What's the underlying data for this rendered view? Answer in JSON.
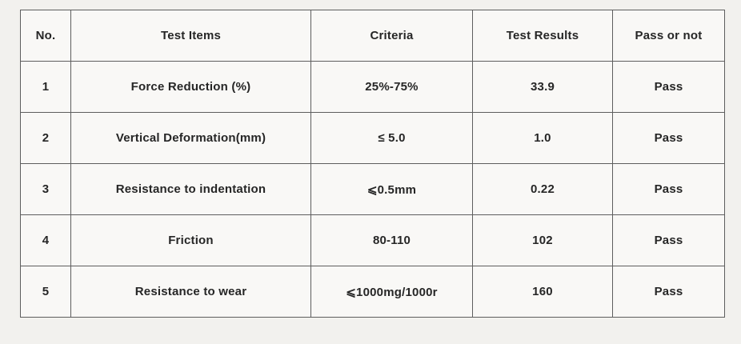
{
  "page": {
    "background_color": "#f2f1ee",
    "table_background_color": "#f9f8f6",
    "border_color": "#5e5e5e",
    "text_color": "#262626"
  },
  "table": {
    "headers": {
      "no": "No.",
      "items": "Test Items",
      "criteria": "Criteria",
      "results": "Test Results",
      "pass": "Pass or not"
    },
    "rows": [
      {
        "no": "1",
        "item": "Force Reduction (%)",
        "criteria": "25%-75%",
        "result": "33.9",
        "pass": "Pass"
      },
      {
        "no": "2",
        "item": "Vertical Deformation(mm)",
        "criteria": "≤ 5.0",
        "result": "1.0",
        "pass": "Pass"
      },
      {
        "no": "3",
        "item": "Resistance to indentation",
        "criteria": "⩽0.5mm",
        "result": "0.22",
        "pass": "Pass"
      },
      {
        "no": "4",
        "item": "Friction",
        "criteria": "80-110",
        "result": "102",
        "pass": "Pass"
      },
      {
        "no": "5",
        "item": "Resistance to wear",
        "criteria": "⩽1000mg/1000r",
        "result": "160",
        "pass": "Pass"
      }
    ]
  }
}
